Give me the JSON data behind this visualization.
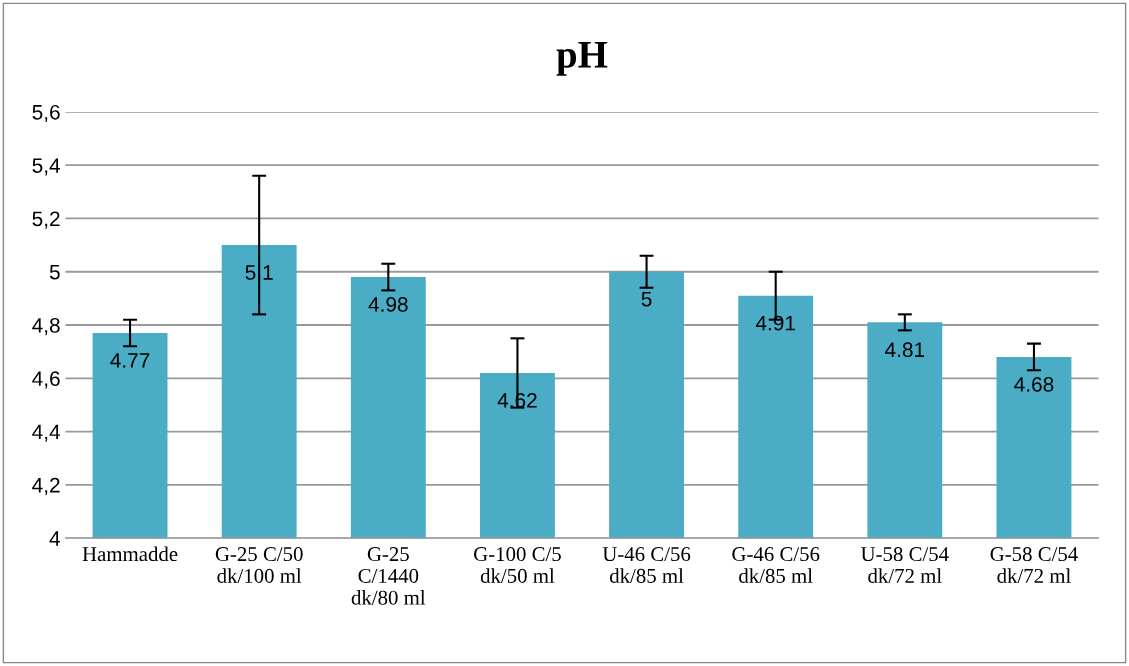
{
  "chart_data": {
    "type": "bar",
    "title": "pH",
    "categories": [
      "Hammadde",
      "G-25 C/50\ndk/100 ml",
      "G-25\nC/1440\ndk/80 ml",
      "G-100 C/5\ndk/50 ml",
      "U-46 C/56\ndk/85 ml",
      "G-46 C/56\ndk/85 ml",
      "U-58 C/54\ndk/72 ml",
      "G-58 C/54\ndk/72 ml"
    ],
    "values": [
      4.77,
      5.1,
      4.98,
      4.62,
      5,
      4.91,
      4.81,
      4.68
    ],
    "errors": [
      0.05,
      0.26,
      0.05,
      0.13,
      0.06,
      0.09,
      0.03,
      0.05
    ],
    "color": "#4bacc6",
    "ylim": [
      4,
      5.6
    ],
    "yticks": [
      4,
      {
        "value": 4.2,
        "label": "4,2"
      },
      {
        "value": 4.4,
        "label": "4,4"
      },
      {
        "value": 4.6,
        "label": "4,6"
      },
      {
        "value": 4.8,
        "label": "4,8"
      },
      5,
      {
        "value": 5.2,
        "label": "5,2"
      },
      {
        "value": 5.4,
        "label": "5,4"
      },
      {
        "value": 5.6,
        "label": "5,6"
      }
    ],
    "grid": "y",
    "data_labels": true
  }
}
